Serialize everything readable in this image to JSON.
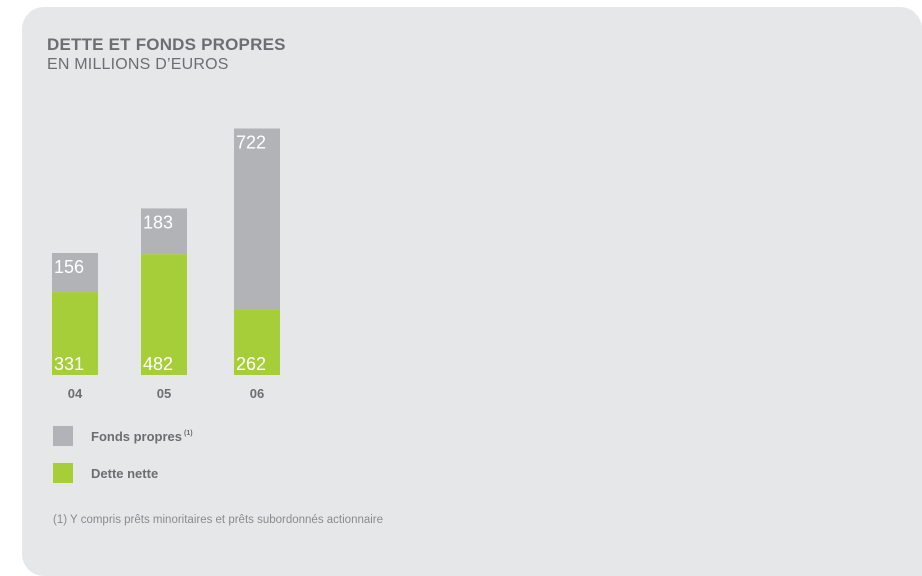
{
  "chart_data": {
    "type": "bar",
    "stacked": true,
    "title": "DETTE ET FONDS PROPRES",
    "subtitle": "EN MILLIONS D’EUROS",
    "categories": [
      "04",
      "05",
      "06"
    ],
    "series": [
      {
        "name": "Dette nette",
        "color": "#a6ce39",
        "values": [
          331,
          482,
          262
        ]
      },
      {
        "name": "Fonds propres",
        "color": "#b1b3b6",
        "values": [
          156,
          183,
          722
        ]
      }
    ],
    "legend_placement": "bottom-left",
    "grid": false
  },
  "legend": [
    {
      "label": "Fonds propres",
      "note": "(1)",
      "color": "#b1b3b6"
    },
    {
      "label": "Dette nette",
      "note": "",
      "color": "#a6ce39"
    }
  ],
  "footnote": "(1) Y compris prêts minoritaires et prêts subordonnés actionnaire"
}
